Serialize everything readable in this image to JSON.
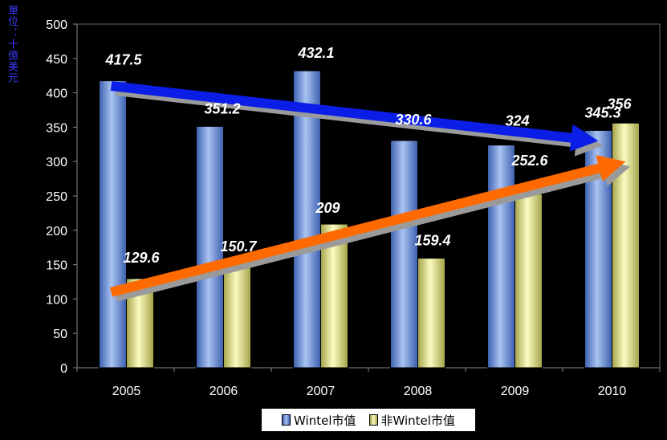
{
  "chart_data": {
    "type": "bar",
    "ylabel": "單位：十億美元",
    "categories": [
      "2005",
      "2006",
      "2007",
      "2008",
      "2009",
      "2010"
    ],
    "series": [
      {
        "name": "Wintel市值",
        "values": [
          417.5,
          351.2,
          432.1,
          330.6,
          324,
          345.3
        ],
        "color": "#6a8fd8"
      },
      {
        "name": "非Wintel市值",
        "values": [
          129.6,
          150.7,
          209,
          159.4,
          252.6,
          356
        ],
        "color": "#e8e898"
      }
    ],
    "ylim": [
      0,
      500
    ],
    "yticks": [
      0,
      50,
      100,
      150,
      200,
      250,
      300,
      350,
      400,
      450,
      500
    ],
    "legend_position": "bottom",
    "arrows": [
      {
        "color": "#0a1ee8",
        "from": [
          "2005",
          410
        ],
        "to": [
          "2010",
          330
        ]
      },
      {
        "color": "#ff6a00",
        "from": [
          "2005",
          110
        ],
        "to": [
          "2010",
          300
        ]
      }
    ]
  }
}
